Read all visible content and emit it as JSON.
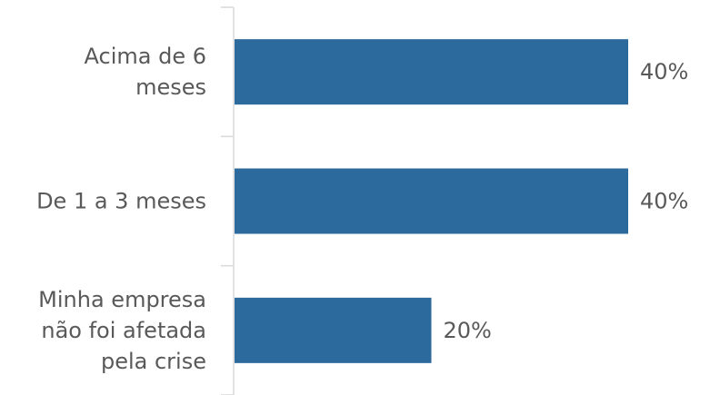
{
  "chart_data": {
    "type": "bar",
    "orientation": "horizontal",
    "title": "",
    "xlabel": "",
    "ylabel": "",
    "categories": [
      [
        "Acima de 6",
        "meses"
      ],
      [
        "De 1 a 3 meses"
      ],
      [
        "Minha empresa",
        "não foi afetada",
        "pela crise"
      ]
    ],
    "values": [
      40,
      40,
      20
    ],
    "value_labels": [
      "40%",
      "40%",
      "20%"
    ],
    "xlim": [
      0,
      50
    ],
    "grid": false,
    "legend": "none",
    "colors": {
      "bar": "#2C6A9E",
      "axis": "#D9D9D9",
      "text": "#595959"
    }
  }
}
